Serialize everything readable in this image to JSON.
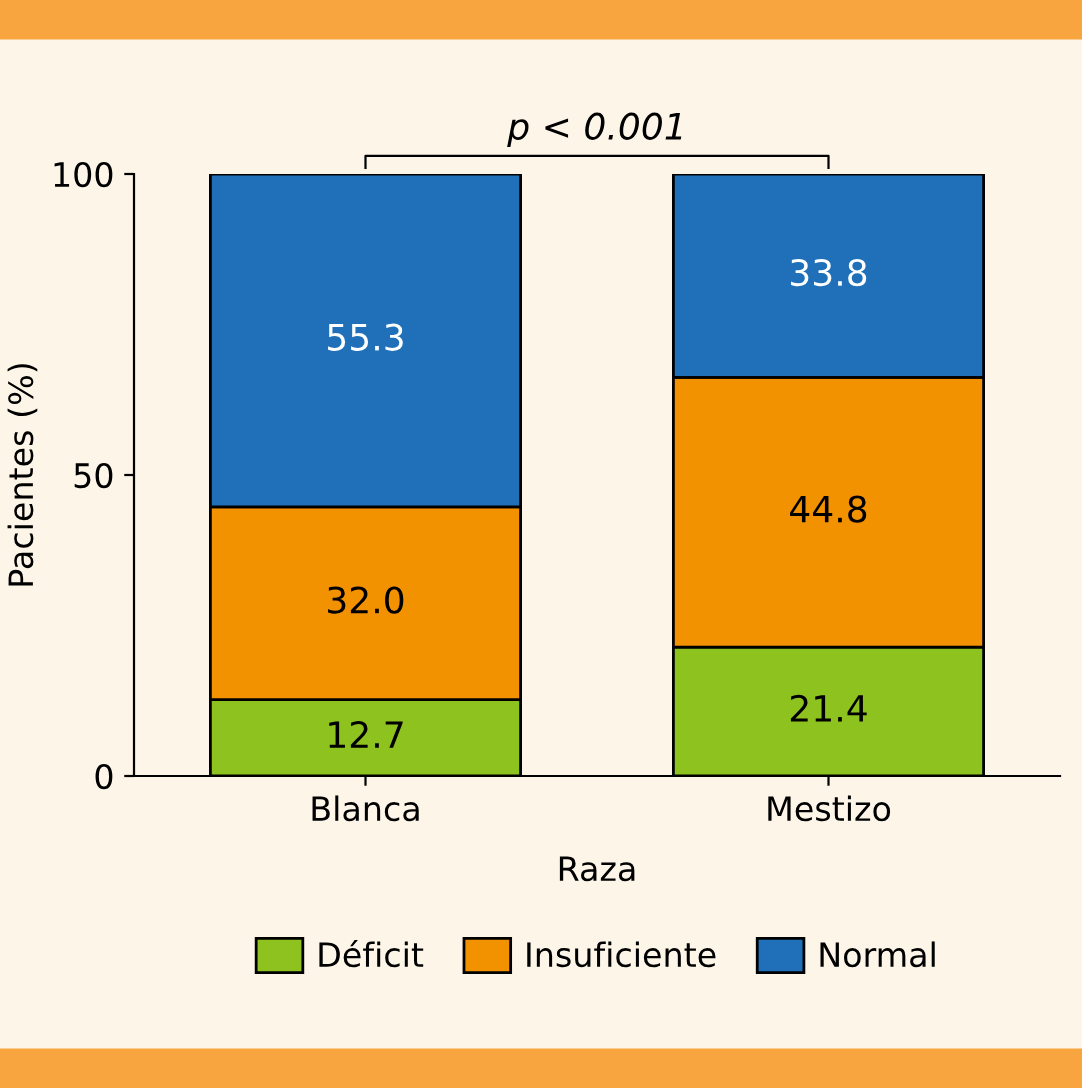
{
  "chart_data": {
    "type": "bar",
    "stacked": true,
    "categories": [
      "Blanca",
      "Mestizo"
    ],
    "series": [
      {
        "name": "Déficit",
        "color": "#8dc21f",
        "values": [
          12.7,
          21.4
        ]
      },
      {
        "name": "Insuficiente",
        "color": "#f39200",
        "values": [
          32.0,
          44.8
        ]
      },
      {
        "name": "Normal",
        "color": "#1f70b8",
        "values": [
          55.3,
          33.8
        ]
      }
    ],
    "value_labels": [
      [
        "12.7",
        "21.4"
      ],
      [
        "32.0",
        "44.8"
      ],
      [
        "55.3",
        "33.8"
      ]
    ],
    "xlabel": "Raza",
    "ylabel": "Pacientes (%)",
    "ylim": [
      0,
      100
    ],
    "yticks": [
      0,
      50,
      100
    ],
    "annotations": [
      "p < 0.001"
    ],
    "legend": "bottom",
    "grid": false
  }
}
